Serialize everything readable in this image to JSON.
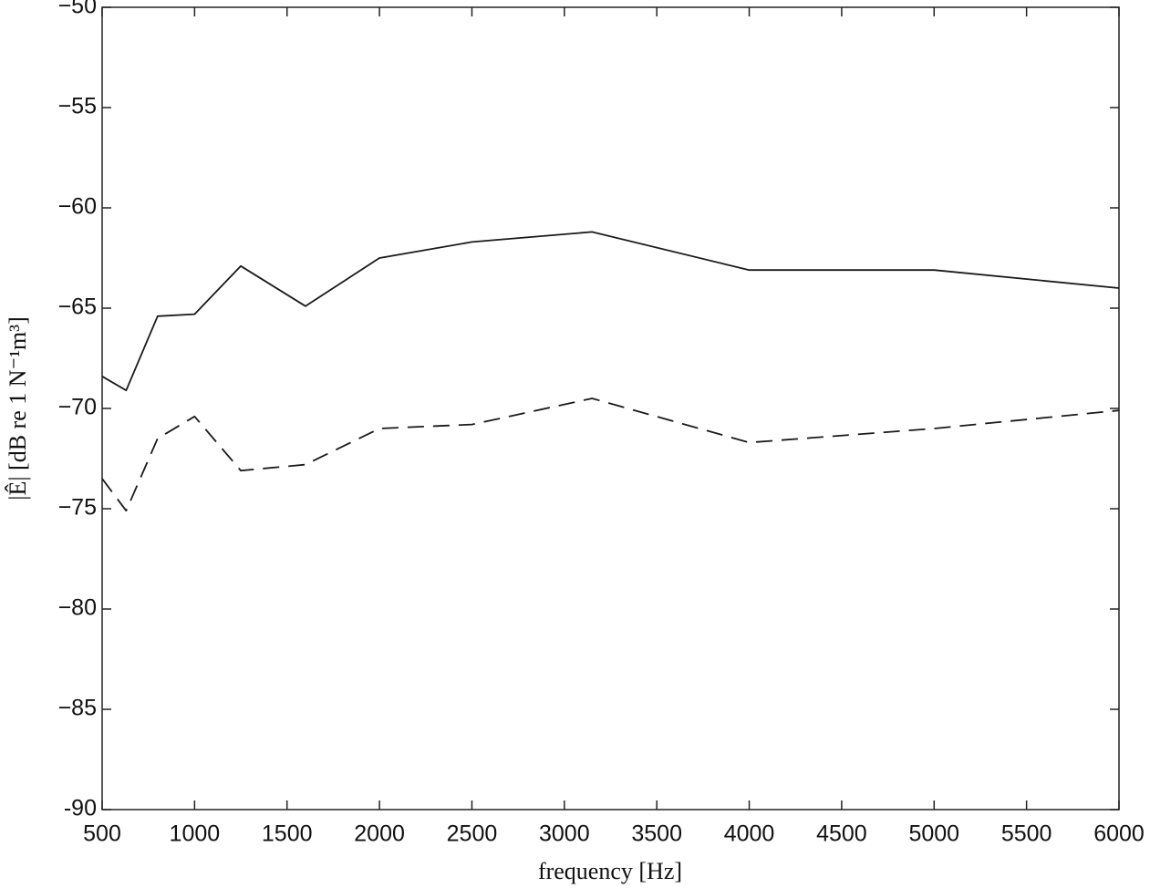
{
  "chart_data": {
    "type": "line",
    "xlabel": "frequency [Hz]",
    "ylabel": "|Ê| [dB re 1 N⁻¹m³]",
    "x": [
      500,
      630,
      800,
      1000,
      1250,
      1600,
      2000,
      2500,
      3150,
      4000,
      5000,
      6000
    ],
    "series": [
      {
        "color": "#1a1a1a",
        "linestyle": "solid",
        "values": [
          -68.4,
          -69.1,
          -65.4,
          -65.3,
          -62.9,
          -64.9,
          -62.5,
          -61.7,
          -61.2,
          -63.1,
          -63.1,
          -64.0
        ]
      },
      {
        "color": "#1a1a1a",
        "linestyle": "dashed",
        "values": [
          -73.5,
          -75.1,
          -71.5,
          -70.4,
          -73.1,
          -72.8,
          -71.0,
          -70.8,
          -69.5,
          -71.7,
          -71.0,
          -70.1
        ]
      }
    ],
    "xlim": [
      500,
      6000
    ],
    "xticks": [
      500,
      1000,
      1500,
      2000,
      2500,
      3000,
      3500,
      4000,
      4500,
      5000,
      5500,
      6000
    ],
    "ylim": [
      -90,
      -50
    ],
    "yticks": [
      -90,
      {
        "value": -85,
        "label": "−85"
      },
      {
        "value": -80,
        "label": "−80"
      },
      {
        "value": -75,
        "label": "−75"
      },
      {
        "value": -70,
        "label": "−70"
      },
      {
        "value": -65,
        "label": "−65"
      },
      {
        "value": -60,
        "label": "−60"
      },
      {
        "value": -55,
        "label": "−55"
      },
      {
        "value": -50,
        "label": "−50"
      }
    ],
    "grid": false
  }
}
